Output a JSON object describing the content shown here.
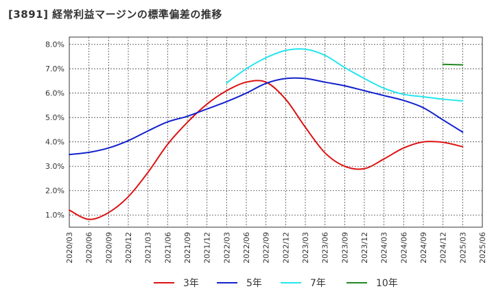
{
  "chart_data": {
    "type": "line",
    "title": "[3891]  経常利益マージンの標準偏差の推移",
    "x": [
      "2020/03",
      "2020/06",
      "2020/09",
      "2020/12",
      "2021/03",
      "2021/06",
      "2021/09",
      "2021/12",
      "2022/03",
      "2022/06",
      "2022/09",
      "2022/12",
      "2023/03",
      "2023/06",
      "2023/09",
      "2023/12",
      "2024/03",
      "2024/06",
      "2024/09",
      "2024/12",
      "2025/03",
      "2025/06"
    ],
    "ylim": [
      0.5,
      8.3
    ],
    "yticks": [
      "1.0%",
      "2.0%",
      "3.0%",
      "4.0%",
      "5.0%",
      "6.0%",
      "7.0%",
      "8.0%"
    ],
    "grid": true,
    "legend_position": "bottom",
    "series": [
      {
        "name": "3年",
        "color": "#dd1111",
        "values": [
          1.2,
          0.82,
          1.1,
          1.75,
          2.75,
          3.9,
          4.8,
          5.55,
          6.1,
          6.45,
          6.45,
          5.75,
          4.6,
          3.55,
          3.0,
          2.9,
          3.3,
          3.75,
          4.0,
          3.98,
          3.8,
          null
        ]
      },
      {
        "name": "5年",
        "color": "#1020cc",
        "values": [
          3.48,
          3.57,
          3.75,
          4.05,
          4.45,
          4.82,
          5.05,
          5.35,
          5.65,
          6.0,
          6.4,
          6.6,
          6.6,
          6.45,
          6.3,
          6.1,
          5.9,
          5.7,
          5.4,
          4.9,
          4.4,
          null
        ]
      },
      {
        "name": "7年",
        "color": "#22e6ee",
        "values": [
          null,
          null,
          null,
          null,
          null,
          null,
          null,
          null,
          6.42,
          7.0,
          7.45,
          7.75,
          7.8,
          7.55,
          7.05,
          6.6,
          6.2,
          5.95,
          5.85,
          5.75,
          5.68,
          null
        ]
      },
      {
        "name": "10年",
        "color": "#228822",
        "values": [
          null,
          null,
          null,
          null,
          null,
          null,
          null,
          null,
          null,
          null,
          null,
          null,
          null,
          null,
          null,
          null,
          null,
          null,
          null,
          7.18,
          7.16,
          null
        ]
      }
    ]
  }
}
